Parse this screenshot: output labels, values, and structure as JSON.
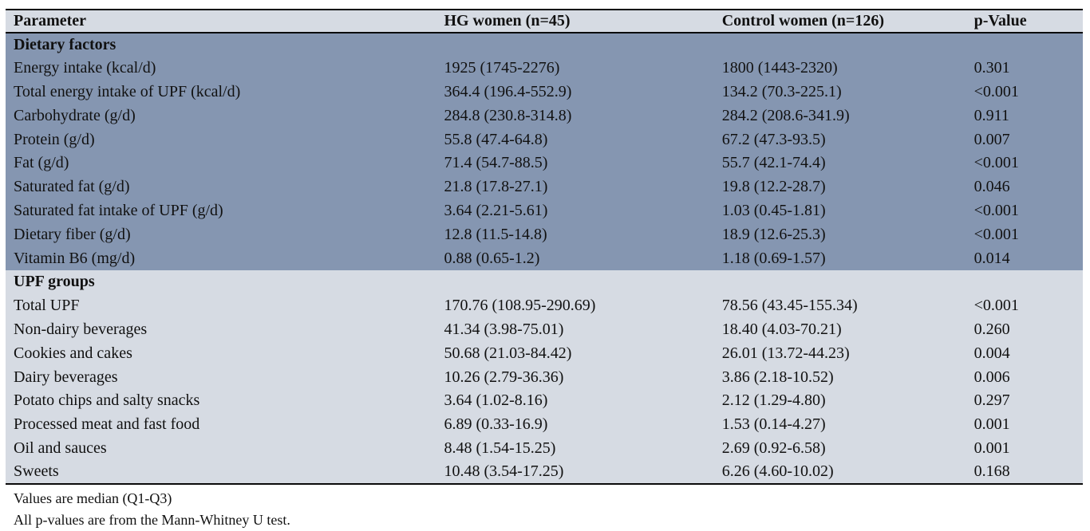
{
  "table": {
    "columns": [
      "Parameter",
      "HG women (n=45)",
      "Control women (n=126)",
      "p-Value"
    ],
    "sections": [
      {
        "title": "Dietary factors",
        "rows": [
          [
            "Energy intake (kcal/d)",
            "1925 (1745-2276)",
            "1800 (1443-2320)",
            "0.301"
          ],
          [
            "Total energy intake of UPF (kcal/d)",
            "364.4 (196.4-552.9)",
            "134.2 (70.3-225.1)",
            "<0.001"
          ],
          [
            "Carbohydrate (g/d)",
            "284.8 (230.8-314.8)",
            "284.2 (208.6-341.9)",
            "0.911"
          ],
          [
            "Protein (g/d)",
            "55.8 (47.4-64.8)",
            "67.2 (47.3-93.5)",
            "0.007"
          ],
          [
            "Fat (g/d)",
            "71.4 (54.7-88.5)",
            "55.7 (42.1-74.4)",
            "<0.001"
          ],
          [
            "Saturated fat (g/d)",
            "21.8 (17.8-27.1)",
            "19.8 (12.2-28.7)",
            "0.046"
          ],
          [
            "Saturated fat intake of UPF (g/d)",
            "3.64 (2.21-5.61)",
            "1.03 (0.45-1.81)",
            "<0.001"
          ],
          [
            "Dietary fiber (g/d)",
            "12.8 (11.5-14.8)",
            "18.9 (12.6-25.3)",
            "<0.001"
          ],
          [
            "Vitamin B6 (mg/d)",
            "0.88 (0.65-1.2)",
            "1.18 (0.69-1.57)",
            "0.014"
          ]
        ]
      },
      {
        "title": "UPF groups",
        "rows": [
          [
            "Total UPF",
            "170.76 (108.95-290.69)",
            "78.56 (43.45-155.34)",
            "<0.001"
          ],
          [
            "Non-dairy beverages",
            "41.34 (3.98-75.01)",
            "18.40 (4.03-70.21)",
            "0.260"
          ],
          [
            "Cookies and cakes",
            "50.68 (21.03-84.42)",
            "26.01 (13.72-44.23)",
            "0.004"
          ],
          [
            "Dairy beverages",
            "10.26 (2.79-36.36)",
            "3.86 (2.18-10.52)",
            "0.006"
          ],
          [
            "Potato chips and salty snacks",
            "3.64 (1.02-8.16)",
            "2.12 (1.29-4.80)",
            "0.297"
          ],
          [
            "Processed meat and fast food",
            "6.89 (0.33-16.9)",
            "1.53 (0.14-4.27)",
            "0.001"
          ],
          [
            "Oil and sauces",
            "8.48 (1.54-15.25)",
            "2.69 (0.92-6.58)",
            "0.001"
          ],
          [
            "Sweets",
            "10.48 (3.54-17.25)",
            "6.26 (4.60-10.02)",
            "0.168"
          ]
        ]
      }
    ]
  },
  "footnotes": [
    "Values are median (Q1-Q3)",
    "All p-values are from the Mann-Whitney U test."
  ],
  "colors": {
    "dark_section_bg": "#8596b1",
    "light_section_bg": "#d6dbe3",
    "border": "#0a0a0a",
    "text": "#111111"
  }
}
